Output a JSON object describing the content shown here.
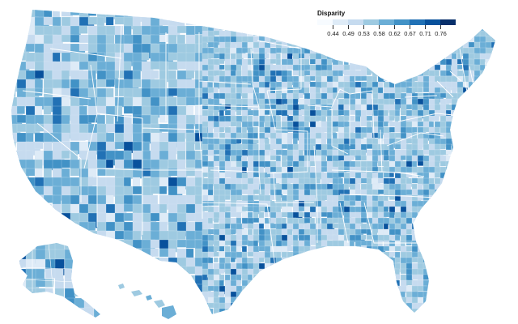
{
  "legend": {
    "title": "Disparity",
    "ticks": [
      "0.44",
      "0.49",
      "0.53",
      "0.58",
      "0.62",
      "0.67",
      "0.71",
      "0.76"
    ],
    "colors": [
      "#f7fbff",
      "#deebf7",
      "#c6dbef",
      "#9ecae1",
      "#6baed6",
      "#4292c6",
      "#2171b5",
      "#08519c",
      "#08306b"
    ]
  },
  "map": {
    "base_color": "#a6cbe8",
    "state_border_color": "#ffffff",
    "regions": [
      "Contiguous United States",
      "Alaska",
      "Hawaii"
    ]
  }
}
